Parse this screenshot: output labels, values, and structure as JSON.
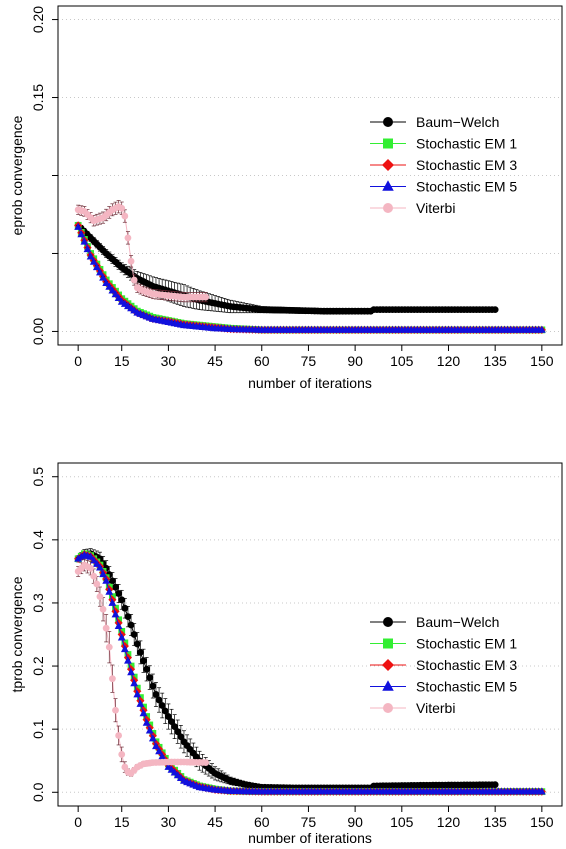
{
  "chart_data": [
    {
      "type": "line",
      "xlabel": "number of iterations",
      "ylabel": "eprob convergence",
      "xlim": [
        1,
        150
      ],
      "ylim": [
        0,
        0.2
      ],
      "xticks": [
        "0",
        "15",
        "30",
        "45",
        "60",
        "75",
        "90",
        "105",
        "120",
        "135",
        "150"
      ],
      "yticks": [
        "0.00",
        "0.05",
        "0.10",
        "0.15",
        "0.20"
      ],
      "ytick_labels_shown": [
        "0.00",
        "0.15",
        "0.20"
      ],
      "grid": "horizontal-dotted",
      "legend_position": "right",
      "series": [
        {
          "name": "Baum−Welch",
          "color": "#000000",
          "marker": "circle",
          "length": 135,
          "points": [
            [
              1,
              0.068
            ],
            [
              5,
              0.06
            ],
            [
              10,
              0.05
            ],
            [
              15,
              0.041
            ],
            [
              20,
              0.034
            ],
            [
              25,
              0.029
            ],
            [
              30,
              0.026
            ],
            [
              35,
              0.023
            ],
            [
              40,
              0.02
            ],
            [
              45,
              0.018
            ],
            [
              50,
              0.016
            ],
            [
              55,
              0.015
            ],
            [
              60,
              0.014
            ],
            [
              70,
              0.0135
            ],
            [
              80,
              0.013
            ],
            [
              95,
              0.013
            ],
            [
              96,
              0.014
            ],
            [
              135,
              0.014
            ]
          ],
          "err": [
            [
              1,
              0.002
            ],
            [
              15,
              0.003
            ],
            [
              25,
              0.006
            ],
            [
              35,
              0.007
            ],
            [
              45,
              0.005
            ],
            [
              60,
              0.002
            ],
            [
              135,
              0.001
            ]
          ]
        },
        {
          "name": "Stochastic EM 1",
          "color": "#33ee33",
          "marker": "square",
          "length": 150,
          "points": [
            [
              1,
              0.068
            ],
            [
              5,
              0.05
            ],
            [
              10,
              0.033
            ],
            [
              15,
              0.021
            ],
            [
              20,
              0.013
            ],
            [
              25,
              0.009
            ],
            [
              30,
              0.007
            ],
            [
              35,
              0.005
            ],
            [
              40,
              0.004
            ],
            [
              45,
              0.003
            ],
            [
              50,
              0.002
            ],
            [
              60,
              0.001
            ],
            [
              150,
              0.001
            ]
          ],
          "err": [
            [
              1,
              0.001
            ],
            [
              150,
              0.0005
            ]
          ]
        },
        {
          "name": "Stochastic EM 3",
          "color": "#ee1111",
          "marker": "diamond",
          "length": 150,
          "points": [
            [
              1,
              0.068
            ],
            [
              5,
              0.049
            ],
            [
              10,
              0.032
            ],
            [
              15,
              0.02
            ],
            [
              20,
              0.012
            ],
            [
              25,
              0.008
            ],
            [
              30,
              0.0065
            ],
            [
              35,
              0.0045
            ],
            [
              40,
              0.0035
            ],
            [
              45,
              0.0025
            ],
            [
              50,
              0.0015
            ],
            [
              60,
              0.001
            ],
            [
              150,
              0.001
            ]
          ],
          "err": [
            [
              1,
              0.001
            ],
            [
              150,
              0.0005
            ]
          ]
        },
        {
          "name": "Stochastic EM 5",
          "color": "#1111dd",
          "marker": "triangle",
          "length": 150,
          "points": [
            [
              1,
              0.067
            ],
            [
              5,
              0.048
            ],
            [
              10,
              0.031
            ],
            [
              15,
              0.019
            ],
            [
              20,
              0.012
            ],
            [
              25,
              0.008
            ],
            [
              30,
              0.006
            ],
            [
              35,
              0.004
            ],
            [
              40,
              0.003
            ],
            [
              45,
              0.002
            ],
            [
              50,
              0.0015
            ],
            [
              60,
              0.001
            ],
            [
              150,
              0.001
            ]
          ],
          "err": [
            [
              1,
              0.001
            ],
            [
              150,
              0.0005
            ]
          ]
        },
        {
          "name": "Viterbi",
          "color": "#f4b6c2",
          "marker": "circle",
          "length": 42,
          "points": [
            [
              1,
              0.078
            ],
            [
              3,
              0.077
            ],
            [
              6,
              0.071
            ],
            [
              9,
              0.073
            ],
            [
              12,
              0.078
            ],
            [
              14,
              0.08
            ],
            [
              15,
              0.079
            ],
            [
              16,
              0.074
            ],
            [
              17,
              0.06
            ],
            [
              18,
              0.045
            ],
            [
              19,
              0.033
            ],
            [
              20,
              0.028
            ],
            [
              22,
              0.026
            ],
            [
              25,
              0.024
            ],
            [
              30,
              0.023
            ],
            [
              35,
              0.022
            ],
            [
              42,
              0.022
            ]
          ],
          "err": [
            [
              1,
              0.003
            ],
            [
              14,
              0.004
            ],
            [
              17,
              0.004
            ],
            [
              20,
              0.003
            ],
            [
              42,
              0.003
            ]
          ]
        }
      ]
    },
    {
      "type": "line",
      "xlabel": "number of iterations",
      "ylabel": "tprob convergence",
      "xlim": [
        1,
        150
      ],
      "ylim": [
        0,
        0.5
      ],
      "xticks": [
        "0",
        "15",
        "30",
        "45",
        "60",
        "75",
        "90",
        "105",
        "120",
        "135",
        "150"
      ],
      "yticks": [
        "0.0",
        "0.1",
        "0.2",
        "0.3",
        "0.4",
        "0.5"
      ],
      "ytick_labels_shown": [
        "0.0",
        "0.1",
        "0.2",
        "0.3",
        "0.4",
        "0.5"
      ],
      "grid": "horizontal-dotted",
      "legend_position": "right",
      "series": [
        {
          "name": "Baum−Welch",
          "color": "#000000",
          "marker": "circle",
          "length": 135,
          "points": [
            [
              1,
              0.37
            ],
            [
              3,
              0.378
            ],
            [
              5,
              0.378
            ],
            [
              8,
              0.37
            ],
            [
              10,
              0.355
            ],
            [
              12,
              0.335
            ],
            [
              15,
              0.305
            ],
            [
              18,
              0.265
            ],
            [
              20,
              0.235
            ],
            [
              23,
              0.195
            ],
            [
              26,
              0.155
            ],
            [
              30,
              0.12
            ],
            [
              35,
              0.08
            ],
            [
              40,
              0.05
            ],
            [
              45,
              0.03
            ],
            [
              50,
              0.018
            ],
            [
              55,
              0.012
            ],
            [
              60,
              0.008
            ],
            [
              70,
              0.007
            ],
            [
              95,
              0.007
            ],
            [
              96,
              0.01
            ],
            [
              110,
              0.011
            ],
            [
              135,
              0.012
            ]
          ],
          "err": [
            [
              1,
              0.005
            ],
            [
              10,
              0.012
            ],
            [
              20,
              0.018
            ],
            [
              30,
              0.02
            ],
            [
              40,
              0.015
            ],
            [
              50,
              0.006
            ],
            [
              60,
              0.002
            ],
            [
              135,
              0.002
            ]
          ]
        },
        {
          "name": "Stochastic EM 1",
          "color": "#33ee33",
          "marker": "square",
          "length": 150,
          "points": [
            [
              1,
              0.37
            ],
            [
              3,
              0.378
            ],
            [
              5,
              0.375
            ],
            [
              8,
              0.36
            ],
            [
              10,
              0.34
            ],
            [
              12,
              0.31
            ],
            [
              15,
              0.255
            ],
            [
              18,
              0.2
            ],
            [
              20,
              0.165
            ],
            [
              23,
              0.12
            ],
            [
              26,
              0.08
            ],
            [
              30,
              0.045
            ],
            [
              35,
              0.02
            ],
            [
              40,
              0.01
            ],
            [
              45,
              0.005
            ],
            [
              50,
              0.002
            ],
            [
              60,
              0.001
            ],
            [
              150,
              0.001
            ]
          ],
          "err": [
            [
              1,
              0.002
            ],
            [
              150,
              0.001
            ]
          ]
        },
        {
          "name": "Stochastic EM 3",
          "color": "#ee1111",
          "marker": "diamond",
          "length": 150,
          "points": [
            [
              1,
              0.37
            ],
            [
              3,
              0.377
            ],
            [
              5,
              0.374
            ],
            [
              8,
              0.358
            ],
            [
              10,
              0.338
            ],
            [
              12,
              0.305
            ],
            [
              15,
              0.25
            ],
            [
              18,
              0.195
            ],
            [
              20,
              0.16
            ],
            [
              23,
              0.115
            ],
            [
              26,
              0.077
            ],
            [
              30,
              0.043
            ],
            [
              35,
              0.019
            ],
            [
              40,
              0.009
            ],
            [
              45,
              0.004
            ],
            [
              50,
              0.002
            ],
            [
              60,
              0.001
            ],
            [
              150,
              0.001
            ]
          ],
          "err": [
            [
              1,
              0.002
            ],
            [
              150,
              0.001
            ]
          ]
        },
        {
          "name": "Stochastic EM 5",
          "color": "#1111dd",
          "marker": "triangle",
          "length": 150,
          "points": [
            [
              1,
              0.37
            ],
            [
              3,
              0.376
            ],
            [
              5,
              0.373
            ],
            [
              8,
              0.356
            ],
            [
              10,
              0.335
            ],
            [
              12,
              0.3
            ],
            [
              15,
              0.245
            ],
            [
              18,
              0.19
            ],
            [
              20,
              0.155
            ],
            [
              23,
              0.11
            ],
            [
              26,
              0.073
            ],
            [
              30,
              0.04
            ],
            [
              35,
              0.018
            ],
            [
              40,
              0.008
            ],
            [
              45,
              0.004
            ],
            [
              50,
              0.002
            ],
            [
              60,
              0.001
            ],
            [
              150,
              0.001
            ]
          ],
          "err": [
            [
              1,
              0.002
            ],
            [
              150,
              0.001
            ]
          ]
        },
        {
          "name": "Viterbi",
          "color": "#f4b6c2",
          "marker": "circle",
          "length": 42,
          "points": [
            [
              1,
              0.35
            ],
            [
              3,
              0.36
            ],
            [
              5,
              0.355
            ],
            [
              7,
              0.33
            ],
            [
              9,
              0.29
            ],
            [
              11,
              0.23
            ],
            [
              12,
              0.18
            ],
            [
              13,
              0.13
            ],
            [
              14,
              0.09
            ],
            [
              15,
              0.06
            ],
            [
              16,
              0.04
            ],
            [
              17,
              0.032
            ],
            [
              18,
              0.03
            ],
            [
              20,
              0.04
            ],
            [
              22,
              0.045
            ],
            [
              25,
              0.047
            ],
            [
              30,
              0.048
            ],
            [
              35,
              0.048
            ],
            [
              42,
              0.047
            ]
          ],
          "err": [
            [
              1,
              0.008
            ],
            [
              7,
              0.012
            ],
            [
              11,
              0.025
            ],
            [
              14,
              0.015
            ],
            [
              17,
              0.005
            ],
            [
              20,
              0.004
            ],
            [
              42,
              0.004
            ]
          ]
        }
      ]
    }
  ]
}
